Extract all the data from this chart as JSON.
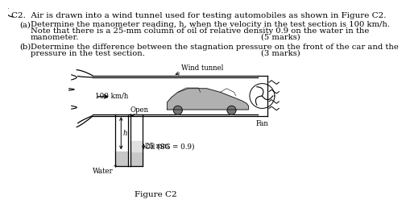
{
  "bg_color": "#ffffff",
  "text_color": "#000000",
  "title": "C2.  Air is drawn into a wind tunnel used for testing automobiles as shown in Figure C2.",
  "part_a_label": "(a)",
  "part_a_text1": "Determine the manometer reading, h, when the velocity in the test section is 100 km/h.",
  "part_a_text2": "Note that there is a 25-mm column of oil of relative density 0.9 on the water in the",
  "part_a_text3": "manometer.",
  "part_a_marks": "(5 marks)",
  "part_b_label": "(b)",
  "part_b_text1": "Determine the difference between the stagnation pressure on the front of the car and the",
  "part_b_text2": "pressure in the test section.",
  "part_b_marks": "(3 marks)",
  "fig_caption": "Figure C2",
  "label_wind_tunnel": "Wind tunnel",
  "label_100kmh": "100 km/h",
  "label_open": "Open",
  "label_25mm": "25 mm",
  "label_water": "Water",
  "label_oil": "Oil (SG = 0.9)",
  "label_fan": "Fan",
  "label_h": "h"
}
